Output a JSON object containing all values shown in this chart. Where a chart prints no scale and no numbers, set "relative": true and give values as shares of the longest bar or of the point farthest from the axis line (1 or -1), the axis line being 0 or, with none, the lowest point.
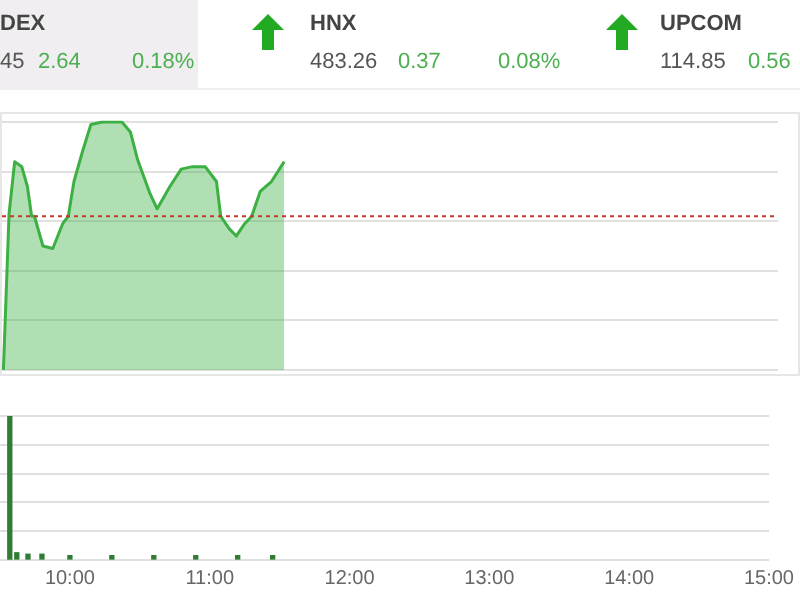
{
  "chart_data": [
    {
      "type": "other",
      "annotations": [
        "DEX",
        "45",
        "2.64",
        "0.18%",
        "HNX",
        "483.26",
        "0.37",
        "0.08%",
        "UPCOM",
        "114.85",
        "0.56"
      ]
    },
    {
      "type": "area",
      "relative": true,
      "grid": "y",
      "xlim": [
        9.5,
        15
      ],
      "x": [
        9.51,
        9.55,
        9.59,
        9.64,
        9.68,
        9.71,
        9.73,
        9.79,
        9.86,
        9.93,
        9.97,
        10.01,
        10.07,
        10.13,
        10.21,
        10.29,
        10.35,
        10.41,
        10.46,
        10.55,
        10.6,
        10.69,
        10.77,
        10.85,
        10.94,
        11.02,
        11.05,
        11.11,
        11.16,
        11.22,
        11.27,
        11.33,
        11.41,
        11.5
      ],
      "series": [
        {
          "color": "#3cb043",
          "values": [
            0,
            0.63,
            0.84,
            0.82,
            0.74,
            0.62,
            0.62,
            0.5,
            0.49,
            0.59,
            0.62,
            0.76,
            0.88,
            0.99,
            1,
            1,
            1,
            0.96,
            0.85,
            0.71,
            0.65,
            0.74,
            0.81,
            0.82,
            0.82,
            0.76,
            0.62,
            0.57,
            0.54,
            0.59,
            0.62,
            0.72,
            0.76,
            0.84
          ]
        }
      ],
      "ref_lines": [
        {
          "axis": "y",
          "value": 0.62,
          "color": "#c0392b",
          "line_style": "dotted"
        }
      ]
    },
    {
      "type": "bar",
      "relative": true,
      "grid": "y",
      "xlim": [
        9.5,
        15
      ],
      "xticks": [
        {
          "value": 10,
          "label": "10:00"
        },
        {
          "value": 11,
          "label": "11:00"
        },
        {
          "value": 12,
          "label": "12:00"
        },
        {
          "value": 13,
          "label": "13:00"
        },
        {
          "value": 14,
          "label": "14:00"
        },
        {
          "value": 15,
          "label": "15:00"
        }
      ],
      "x": [
        9.57,
        9.62,
        9.7,
        9.8,
        10,
        10.3,
        10.6,
        10.9,
        11.2,
        11.45
      ],
      "series": [
        {
          "color": "#2e7d32",
          "values": [
            1,
            0.05,
            0.04,
            0.04,
            0.03,
            0.03,
            0.03,
            0.03,
            0.03,
            0.03
          ]
        }
      ]
    }
  ]
}
